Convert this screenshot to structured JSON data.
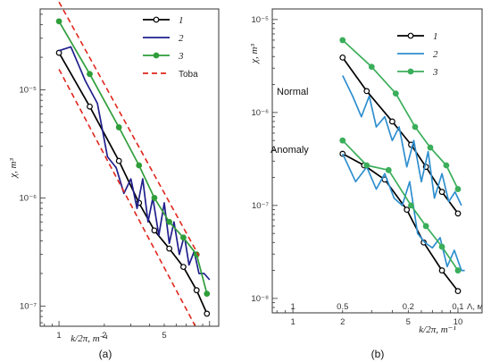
{
  "chart_data": [
    {
      "panel": "(a)",
      "type": "line",
      "x_scale": "log",
      "y_scale": "log",
      "xlim": [
        0.75,
        11.5
      ],
      "ylim": [
        6.5e-08,
        5.6e-05
      ],
      "xlabel": "k/2π, m⁻¹",
      "ylabel": "χ, m³",
      "x_ticks": [
        {
          "v": 1,
          "label": "1"
        },
        {
          "v": 2,
          "label": "2"
        },
        {
          "v": 5,
          "label": "5"
        }
      ],
      "y_ticks": [
        {
          "v": 1e-05,
          "label": "10⁻⁵"
        },
        {
          "v": 1e-06,
          "label": "10⁻⁶"
        },
        {
          "v": 1e-07,
          "label": "10⁻⁷"
        }
      ],
      "legend_position": "top-right",
      "series": [
        {
          "name": "1",
          "color": "#000000",
          "marker": "open-circle",
          "dash": "",
          "x": [
            1.0,
            1.6,
            2.5,
            3.4,
            4.3,
            5.4,
            6.7,
            8.2,
            9.6
          ],
          "y": [
            2.2e-05,
            7e-06,
            2.2e-06,
            9e-07,
            5e-07,
            3.4e-07,
            2.3e-07,
            1.4e-07,
            8.5e-08
          ]
        },
        {
          "name": "2",
          "color": "#1f1f8c",
          "marker": "none",
          "dash": "",
          "x": [
            1.0,
            1.2,
            1.5,
            1.8,
            2.1,
            2.4,
            2.7,
            3.0,
            3.3,
            3.6,
            3.9,
            4.2,
            4.6,
            5.0,
            5.4,
            5.8,
            6.3,
            6.8,
            7.3,
            7.9,
            8.5,
            9.2,
            10.0
          ],
          "y": [
            2.3e-05,
            2.5e-05,
            1.2e-05,
            7.5e-06,
            2.4e-06,
            1.9e-06,
            1.1e-06,
            1.5e-06,
            8e-07,
            1.5e-06,
            6e-07,
            1e-06,
            4.5e-07,
            9e-07,
            3.8e-07,
            6e-07,
            3e-07,
            4.5e-07,
            2.4e-07,
            3.2e-07,
            2e-07,
            2e-07,
            1.75e-07
          ]
        },
        {
          "name": "3",
          "color": "#2f9e3a",
          "marker": "filled-circle",
          "dash": "",
          "x": [
            1.0,
            1.6,
            2.5,
            3.4,
            4.3,
            5.4,
            6.7,
            8.2,
            9.6
          ],
          "y": [
            4.3e-05,
            1.4e-05,
            4.5e-06,
            2e-06,
            1e-06,
            6e-07,
            4.3e-07,
            3e-07,
            1.3e-07
          ]
        },
        {
          "name": "Toba",
          "color": "#e0261c",
          "marker": "none",
          "dash": "6,4",
          "x": [
            1.0,
            8.5
          ],
          "y": [
            6.5e-05,
            2.9e-07
          ]
        },
        {
          "name": "",
          "color": "#e0261c",
          "marker": "none",
          "dash": "6,4",
          "x": [
            1.0,
            8.0
          ],
          "y": [
            1.55e-05,
            6.6e-08
          ]
        }
      ]
    },
    {
      "panel": "(b)",
      "type": "line",
      "x_scale": "log",
      "y_scale": "log",
      "xlim": [
        0.75,
        14.0
      ],
      "ylim": [
        7e-09,
        1.3e-05
      ],
      "xlabel": "k/2π, m⁻¹",
      "ylabel": "χ, m³",
      "top_axis_label": "Λ, м",
      "x_ticks": [
        {
          "v": 1,
          "label": "1"
        },
        {
          "v": 2,
          "label": "2"
        },
        {
          "v": 5,
          "label": "5"
        },
        {
          "v": 10,
          "label": "10"
        }
      ],
      "lambda_ticks": [
        {
          "k": 1,
          "label": "1"
        },
        {
          "k": 2,
          "label": "0.5"
        },
        {
          "k": 5,
          "label": "0.2"
        },
        {
          "k": 10,
          "label": "0.1"
        }
      ],
      "y_ticks": [
        {
          "v": 1e-05,
          "label": "10⁻⁵"
        },
        {
          "v": 1e-06,
          "label": "10⁻⁶"
        },
        {
          "v": 1e-07,
          "label": "10⁻⁷"
        },
        {
          "v": 1e-08,
          "label": "10⁻⁸"
        }
      ],
      "annotations": [
        "Normal",
        "Anomaly"
      ],
      "legend_position": "top-right",
      "series": [
        {
          "name": "1",
          "color": "#000000",
          "marker": "open-circle",
          "dash": "",
          "x": [
            2.0,
            2.8,
            4.0,
            5.2,
            6.4,
            8.0,
            10.0
          ],
          "y": [
            3.9e-06,
            1.7e-06,
            8e-07,
            4.5e-07,
            2.6e-07,
            1.4e-07,
            8.2e-08
          ]
        },
        {
          "name": "2",
          "color": "#2f8fcf",
          "marker": "none",
          "dash": "",
          "x": [
            2.0,
            2.3,
            2.6,
            2.9,
            3.2,
            3.6,
            4.0,
            4.4,
            4.9,
            5.4,
            6.0,
            6.6,
            7.2,
            8.0,
            8.8,
            9.6,
            10.5
          ],
          "y": [
            2.5e-06,
            1.5e-06,
            9e-07,
            1.5e-06,
            7e-07,
            9e-07,
            5e-07,
            7e-07,
            2.6e-07,
            5e-07,
            1.8e-07,
            3.8e-07,
            1.2e-07,
            2.2e-07,
            1.1e-07,
            1.4e-07,
            1e-07
          ]
        },
        {
          "name": "3",
          "color": "#3aae5a",
          "marker": "filled-circle",
          "dash": "",
          "x": [
            2.0,
            3.0,
            4.2,
            5.5,
            6.8,
            8.5,
            10.0
          ],
          "y": [
            6e-06,
            3.1e-06,
            1.6e-06,
            7e-07,
            4.2e-07,
            2.7e-07,
            1.5e-07
          ]
        },
        {
          "name": "",
          "color": "#000000",
          "marker": "open-circle",
          "dash": "",
          "x": [
            2.0,
            2.7,
            3.6,
            4.9,
            6.2,
            8.0,
            10.0
          ],
          "y": [
            3.6e-07,
            2.7e-07,
            1.9e-07,
            9e-08,
            4e-08,
            2e-08,
            1.2e-08
          ]
        },
        {
          "name": "",
          "color": "#2f8fcf",
          "marker": "none",
          "dash": "",
          "x": [
            2.0,
            2.4,
            2.8,
            3.2,
            3.6,
            4.1,
            4.6,
            5.1,
            5.7,
            6.3,
            7.0,
            7.8,
            8.6,
            9.5,
            10.5,
            11.0
          ],
          "y": [
            3.6e-07,
            1.8e-07,
            2.6e-07,
            1.5e-07,
            2.2e-07,
            1.2e-07,
            1e-07,
            1.8e-07,
            5e-08,
            4e-08,
            3.5e-08,
            4.5e-08,
            2.2e-08,
            3.3e-08,
            2e-08,
            2e-08
          ]
        },
        {
          "name": "",
          "color": "#3aae5a",
          "marker": "filled-circle",
          "dash": "",
          "x": [
            2.0,
            2.8,
            3.8,
            5.2,
            6.4,
            8.0,
            10.0
          ],
          "y": [
            5e-07,
            2.7e-07,
            2.4e-07,
            1e-07,
            6e-08,
            3.6e-08,
            2e-08
          ]
        }
      ]
    }
  ]
}
